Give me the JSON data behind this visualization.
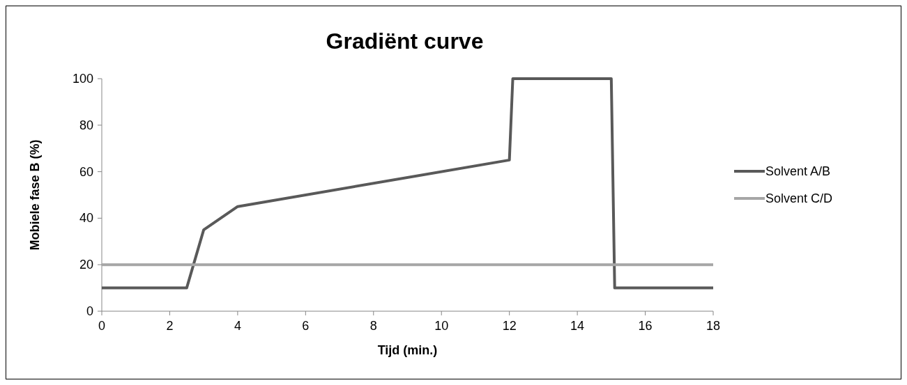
{
  "chart_data": {
    "type": "line",
    "title": "Gradiënt curve",
    "xlabel": "Tijd (min.)",
    "ylabel": "Mobiele fase B (%)",
    "xlim": [
      0,
      18
    ],
    "xticks": [
      0,
      2,
      4,
      6,
      8,
      10,
      12,
      14,
      16,
      18
    ],
    "ylim": [
      0,
      100
    ],
    "yticks": [
      0,
      20,
      40,
      60,
      80,
      100
    ],
    "grid": false,
    "legend": "right",
    "marker": "none",
    "line_style": "solid",
    "series": [
      {
        "name": "Solvent A/B",
        "color": "#595959",
        "x": [
          0,
          2.5,
          3,
          4,
          12,
          12.1,
          15,
          15.1,
          18
        ],
        "values": [
          10,
          10,
          35,
          45,
          65,
          100,
          100,
          10,
          10
        ]
      },
      {
        "name": "Solvent C/D",
        "color": "#a6a6a6",
        "x": [
          0,
          18
        ],
        "values": [
          20,
          20
        ]
      }
    ]
  }
}
